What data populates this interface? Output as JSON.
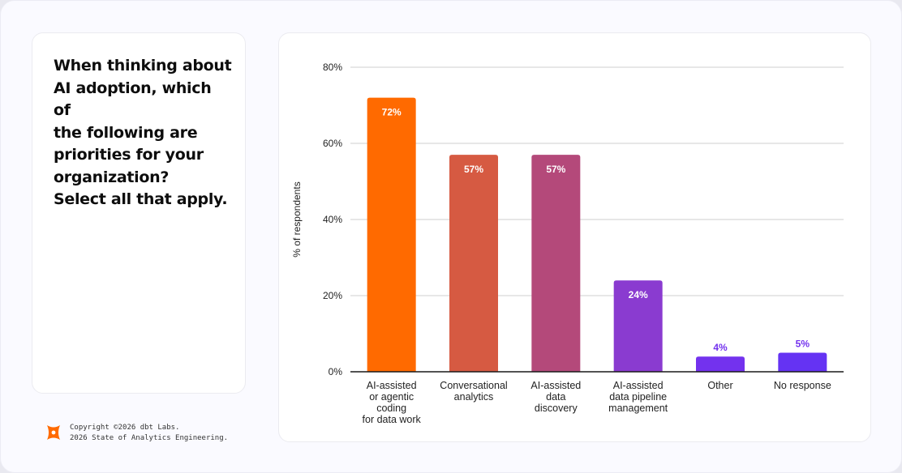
{
  "question": {
    "lines": [
      "When thinking about",
      "AI adoption, which of",
      "the following are",
      "priorities for your",
      "organization?",
      "Select all that apply."
    ]
  },
  "footer": {
    "copyright": "Copyright ©2026 dbt Labs.",
    "report": "2026 State of Analytics Engineering."
  },
  "chart_data": {
    "type": "bar",
    "title": "",
    "xlabel": "",
    "ylabel": "% of respondents",
    "ylim": [
      0,
      80
    ],
    "yticks": [
      0,
      20,
      40,
      60,
      80
    ],
    "ytick_labels": [
      "0%",
      "20%",
      "40%",
      "60%",
      "80%"
    ],
    "grid": true,
    "categories": [
      [
        "AI-assisted",
        "or agentic",
        "coding",
        "for data work"
      ],
      [
        "Conversational",
        "analytics"
      ],
      [
        "AI-assisted",
        "data",
        "discovery"
      ],
      [
        "AI-assisted",
        "data pipeline",
        "management"
      ],
      [
        "Other"
      ],
      [
        "No response"
      ]
    ],
    "values": [
      72,
      57,
      57,
      24,
      4,
      5
    ],
    "data_labels": [
      "72%",
      "57%",
      "57%",
      "24%",
      "4%",
      "5%"
    ],
    "colors": [
      "#ff6a00",
      "#d65a42",
      "#b4497a",
      "#8a3bd0",
      "#7332ee",
      "#6533f3"
    ],
    "label_color_inside": "#ffffff",
    "label_color_outside": "#7332ee"
  }
}
